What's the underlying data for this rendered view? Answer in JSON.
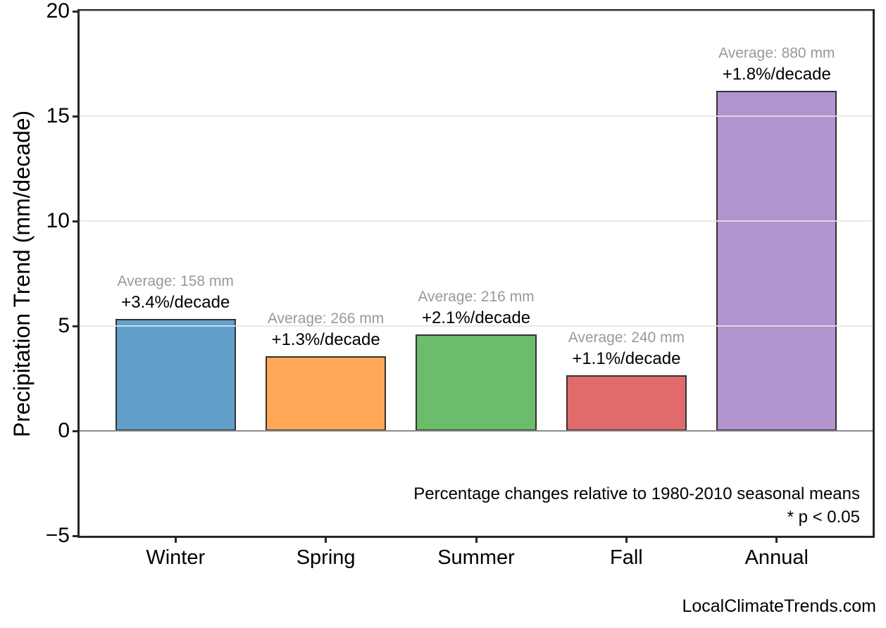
{
  "figure": {
    "footer": "LocalClimateTrends.com"
  },
  "chart_data": {
    "type": "bar",
    "title": "",
    "xlabel": "",
    "ylabel": "Precipitation Trend (mm/decade)",
    "ylim": [
      -5,
      20
    ],
    "yticks": [
      20,
      15,
      10,
      5,
      0,
      -5
    ],
    "ytick_labels": [
      "20",
      "15",
      "10",
      "5",
      "0",
      "−5"
    ],
    "grid_values": [
      20,
      15,
      10,
      5
    ],
    "grid_on": true,
    "legend_position": "none",
    "categories": [
      "Winter",
      "Spring",
      "Summer",
      "Fall",
      "Annual"
    ],
    "bars": [
      {
        "category": "Winter",
        "value": 5.35,
        "average_mm": 158,
        "percent_per_decade": 3.4,
        "avg_label": "Average: 158 mm",
        "pct_label": "+3.4%/decade",
        "color": "#62A0CB"
      },
      {
        "category": "Spring",
        "value": 3.55,
        "average_mm": 266,
        "percent_per_decade": 1.3,
        "avg_label": "Average: 266 mm",
        "pct_label": "+1.3%/decade",
        "color": "#FFA857"
      },
      {
        "category": "Summer",
        "value": 4.6,
        "average_mm": 216,
        "percent_per_decade": 2.1,
        "avg_label": "Average: 216 mm",
        "pct_label": "+2.1%/decade",
        "color": "#6BBC6B"
      },
      {
        "category": "Fall",
        "value": 2.65,
        "average_mm": 240,
        "percent_per_decade": 1.1,
        "avg_label": "Average: 240 mm",
        "pct_label": "+1.1%/decade",
        "color": "#E16A6A"
      },
      {
        "category": "Annual",
        "value": 16.2,
        "average_mm": 880,
        "percent_per_decade": 1.8,
        "avg_label": "Average: 880 mm",
        "pct_label": "+1.8%/decade",
        "color": "#B294D1"
      }
    ],
    "annotations": [
      "Percentage changes relative to 1980-2010 seasonal means",
      "* p < 0.05"
    ],
    "colors": {
      "axis": "#262626",
      "zero_line": "#8C8C8C",
      "gridline": "#E4E4E4",
      "bar_edge": "#333333",
      "avg_label": "#999999",
      "text": "#000000",
      "background": "#FFFFFF"
    }
  }
}
